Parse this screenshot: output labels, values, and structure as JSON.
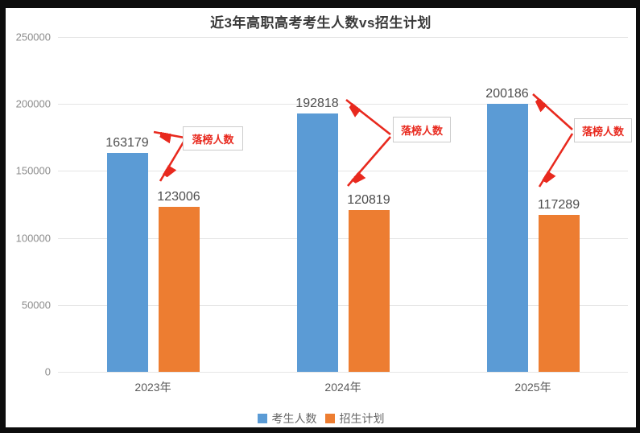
{
  "frame": {
    "border_color": "#0d0d0d",
    "background": "#ffffff"
  },
  "chart_data": {
    "type": "bar",
    "title": "近3年高职高考考生人数vs招生计划",
    "categories": [
      "2023年",
      "2024年",
      "2025年"
    ],
    "series": [
      {
        "name": "考生人数",
        "color": "#5b9bd5",
        "values": [
          163179,
          192818,
          200186
        ]
      },
      {
        "name": "招生计划",
        "color": "#ed7d31",
        "values": [
          123006,
          120819,
          117289
        ]
      }
    ],
    "ylim": [
      0,
      250000
    ],
    "yticks": [
      0,
      50000,
      100000,
      150000,
      200000,
      250000
    ],
    "grid": true,
    "legend_position": "bottom",
    "value_labels_shown": true,
    "annotation_color": "#e8291e",
    "annotations": [
      {
        "label": "落榜人数",
        "applies_to": "2023年"
      },
      {
        "label": "落榜人数",
        "applies_to": "2024年"
      },
      {
        "label": "落榜人数",
        "applies_to": "2025年"
      }
    ]
  }
}
